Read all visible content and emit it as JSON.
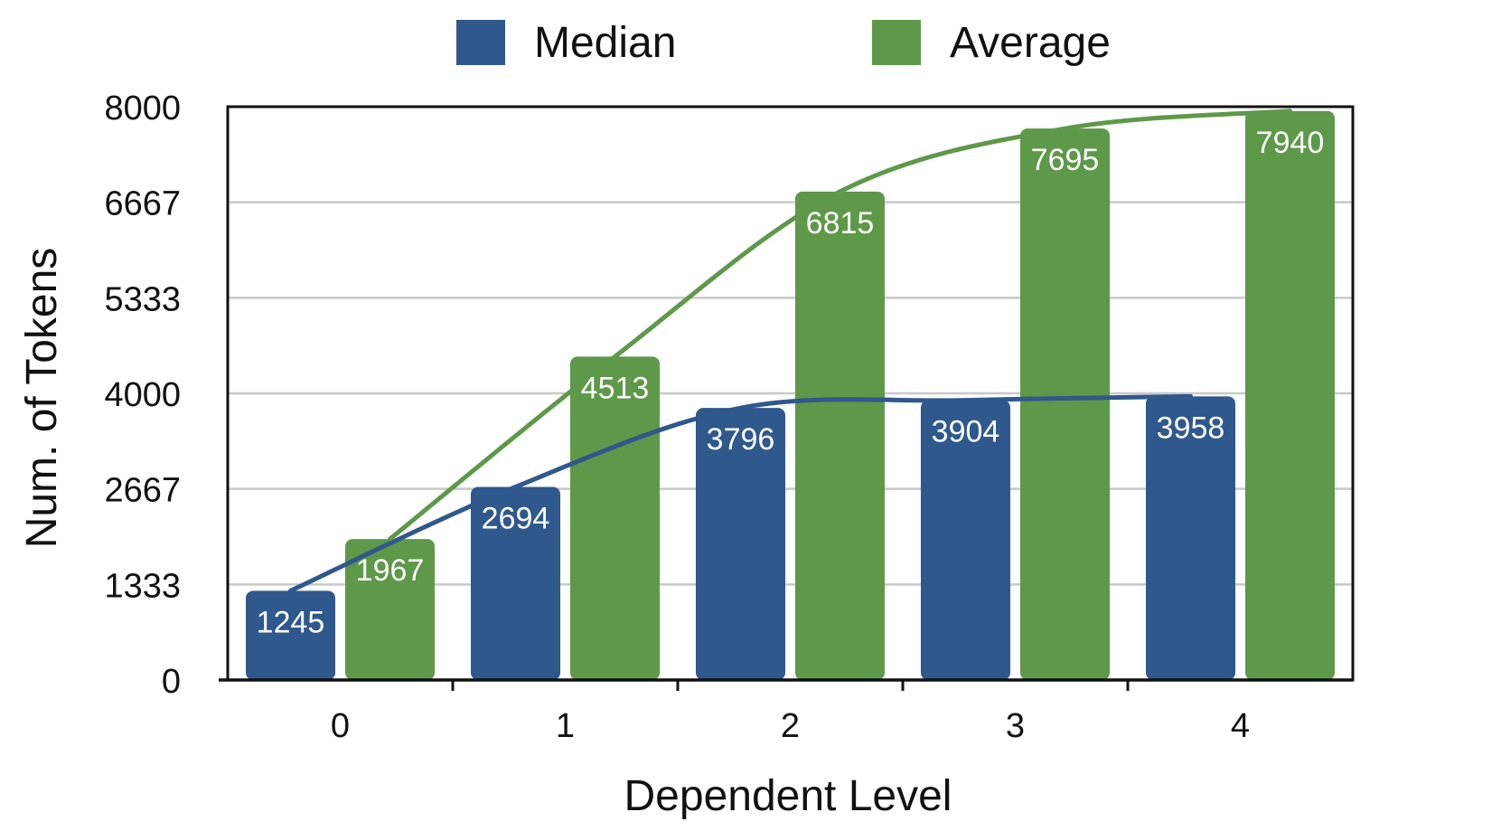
{
  "chart_data": {
    "type": "bar",
    "title": "",
    "xlabel": "Dependent Level",
    "ylabel": "Num. of Tokens",
    "categories": [
      "0",
      "1",
      "2",
      "3",
      "4"
    ],
    "ylim": [
      0,
      8000
    ],
    "yticks": [
      "0",
      "1333",
      "2667",
      "4000",
      "5333",
      "6667",
      "8000"
    ],
    "ytick_values": [
      0,
      1333,
      2667,
      4000,
      5333,
      6667,
      8000
    ],
    "grid": true,
    "legend_position": "top",
    "series": [
      {
        "name": "Median",
        "color": "#2f588d",
        "values": [
          1245,
          2694,
          3796,
          3904,
          3958
        ],
        "labels": [
          "1245",
          "2694",
          "3796",
          "3904",
          "3958"
        ]
      },
      {
        "name": "Average",
        "color": "#5e9849",
        "values": [
          1967,
          4513,
          6815,
          7695,
          7940
        ],
        "labels": [
          "1967",
          "4513",
          "6815",
          "7695",
          "7940"
        ]
      }
    ],
    "trend_lines": true
  }
}
